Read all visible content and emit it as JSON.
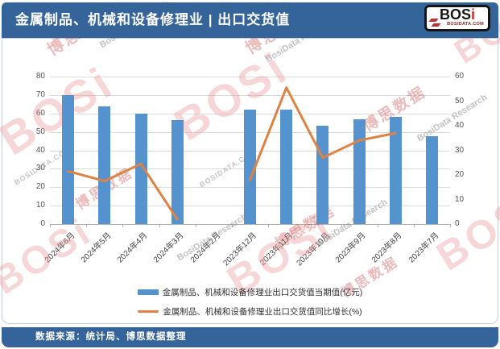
{
  "header": {
    "title": "金属制品、机械和设备修理业 | 出口交货值",
    "logo": {
      "main": "BOS",
      "accent": "i",
      "site": "BOSIDATA.COM"
    }
  },
  "footer": {
    "source": "数据来源：统计局、博思数据整理"
  },
  "watermark": {
    "logo": "BOSi",
    "cn": "博思数据",
    "en": "BosiData Research",
    "site": "BOSIDATA.COM"
  },
  "colors": {
    "banner_bg": "#35649A",
    "bar": "#5493CE",
    "line": "#DF8244",
    "grid": "#DCDCDC",
    "axis_text": "#555555"
  },
  "chart_data": {
    "type": "bar",
    "subtype": "bar+line dual-axis combo",
    "categories": [
      "2024年6月",
      "2024年5月",
      "2024年4月",
      "2024年3月",
      "2024年2月",
      "2023年12月",
      "2023年11月",
      "2023年10月",
      "2023年9月",
      "2023年8月",
      "2023年7月"
    ],
    "series": [
      {
        "name": "金属制品、机械和设备修理业出口交货值当期值(亿元)",
        "type": "bar",
        "axis": "left",
        "color": "#5493CE",
        "values": [
          70,
          64,
          60,
          56.5,
          null,
          62,
          62,
          53.5,
          57,
          58,
          47.5
        ]
      },
      {
        "name": "金属制品、机械和设备修理业出口交货值同比增长(%)",
        "type": "line",
        "axis": "right",
        "color": "#DF8244",
        "values": [
          21.5,
          17.5,
          24.5,
          2,
          null,
          18,
          55.5,
          27,
          34,
          37,
          null
        ]
      }
    ],
    "left_axis": {
      "min": 0,
      "max": 80,
      "step": 10
    },
    "right_axis": {
      "min": 0,
      "max": 60,
      "step": 10
    },
    "grid": "horizontal only",
    "legend_position": "bottom"
  }
}
